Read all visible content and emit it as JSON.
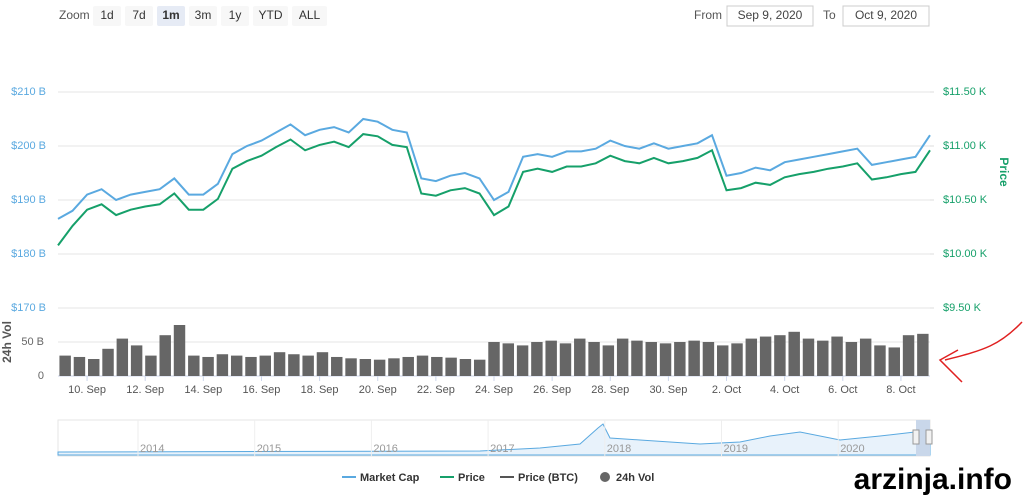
{
  "zoom": {
    "label": "Zoom",
    "buttons": [
      "1d",
      "7d",
      "1m",
      "3m",
      "1y",
      "YTD",
      "ALL"
    ],
    "selected": 2
  },
  "range": {
    "from_label": "From",
    "from": "Sep 9, 2020",
    "to_label": "To",
    "to": "Oct 9, 2020"
  },
  "chart_data": {
    "type": "line",
    "x_labels": [
      "10. Sep",
      "12. Sep",
      "14. Sep",
      "16. Sep",
      "18. Sep",
      "20. Sep",
      "22. Sep",
      "24. Sep",
      "26. Sep",
      "28. Sep",
      "30. Sep",
      "2. Oct",
      "4. Oct",
      "6. Oct",
      "8. Oct"
    ],
    "ylim": [
      170,
      210
    ],
    "yticks": [
      {
        "value": 170,
        "label": "$170 B"
      },
      {
        "value": 180,
        "label": "$180 B"
      },
      {
        "value": 190,
        "label": "$190 B"
      },
      {
        "value": 200,
        "label": "$200 B"
      },
      {
        "value": 210,
        "label": "$210 B"
      }
    ],
    "y2label": "Price",
    "y2lim": [
      9.5,
      11.5
    ],
    "y2ticks": [
      {
        "value": 9.5,
        "label": "$9.50 K"
      },
      {
        "value": 10,
        "label": "$10.00 K"
      },
      {
        "value": 10.5,
        "label": "$10.50 K"
      },
      {
        "value": 11,
        "label": "$11.00 K"
      },
      {
        "value": 11.5,
        "label": "$11.50 K"
      }
    ],
    "vol_label": "24h Vol",
    "vol_lim": [
      0,
      100
    ],
    "vol_ticks": [
      0,
      {
        "value": 50,
        "label": "50 B"
      }
    ],
    "grid": true,
    "series": [
      {
        "name": "Market Cap",
        "color": "#5aa9e0",
        "axis": "y",
        "values": [
          186.5,
          188,
          191,
          192,
          190,
          191,
          191.5,
          192,
          194,
          191,
          191,
          193,
          198.5,
          200,
          201,
          202.5,
          204,
          202,
          203,
          203.5,
          202.5,
          205,
          204.5,
          203,
          202.5,
          194,
          193.5,
          194.5,
          195,
          194,
          190,
          191.5,
          198,
          198.5,
          198,
          199,
          199,
          199.5,
          201,
          200,
          199.5,
          200.5,
          199.5,
          200,
          200.5,
          202,
          194.5,
          195,
          196,
          195.5,
          197,
          197.5,
          198,
          198.5,
          199,
          199.5,
          196.5,
          197,
          197.5,
          198,
          202
        ]
      },
      {
        "name": "Price",
        "color": "#16a06a",
        "axis": "y2",
        "values": [
          10.08,
          10.26,
          10.41,
          10.46,
          10.36,
          10.41,
          10.44,
          10.46,
          10.56,
          10.41,
          10.41,
          10.51,
          10.79,
          10.86,
          10.91,
          10.99,
          11.06,
          10.96,
          11.01,
          11.04,
          10.99,
          11.11,
          11.09,
          11.01,
          10.99,
          10.56,
          10.54,
          10.59,
          10.61,
          10.56,
          10.36,
          10.44,
          10.76,
          10.79,
          10.76,
          10.81,
          10.81,
          10.84,
          10.91,
          10.86,
          10.84,
          10.89,
          10.84,
          10.86,
          10.89,
          10.96,
          10.59,
          10.61,
          10.66,
          10.64,
          10.71,
          10.74,
          10.76,
          10.79,
          10.81,
          10.84,
          10.69,
          10.71,
          10.74,
          10.76,
          10.96
        ]
      },
      {
        "name": "24h Vol",
        "color": "#666666",
        "axis": "vol",
        "values": [
          30,
          28,
          25,
          40,
          55,
          45,
          30,
          60,
          75,
          30,
          28,
          32,
          30,
          28,
          30,
          35,
          32,
          30,
          35,
          28,
          26,
          25,
          24,
          26,
          28,
          30,
          28,
          27,
          25,
          24,
          50,
          48,
          45,
          50,
          52,
          48,
          55,
          50,
          45,
          55,
          52,
          50,
          48,
          50,
          52,
          50,
          45,
          48,
          55,
          58,
          60,
          65,
          55,
          52,
          58,
          50,
          55,
          45,
          42,
          60,
          62
        ]
      }
    ],
    "hidden_series": [
      {
        "name": "Price (BTC)",
        "color": "#555555"
      }
    ],
    "navigator_years": [
      "2014",
      "2015",
      "2016",
      "2017",
      "2018",
      "2019",
      "2020"
    ]
  },
  "watermark": "arzinja.info"
}
